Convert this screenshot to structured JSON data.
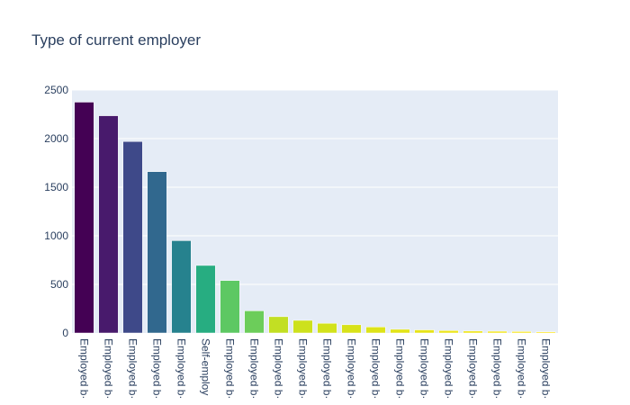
{
  "chart_data": {
    "type": "bar",
    "title": "Type of current employer",
    "xlabel": "",
    "ylabel": "",
    "ylim": [
      0,
      2500
    ],
    "yticks": [
      0,
      500,
      1000,
      1500,
      2000,
      2500
    ],
    "grid": true,
    "legend": "none",
    "categories": [
      "Employed b·",
      "Employed b·",
      "Employed b·",
      "Employed b·",
      "Employed b·",
      "Self-employ",
      "Employed b·",
      "Employed b·",
      "Employed b·",
      "Employed b·",
      "Employed b·",
      "Employed b·",
      "Employed b·",
      "Employed b·",
      "Employed b·",
      "Employed b·",
      "Employed b·",
      "Employed b·",
      "Employed b·",
      "Employed b·"
    ],
    "values": [
      2375,
      2235,
      1970,
      1660,
      950,
      695,
      540,
      228,
      168,
      130,
      100,
      85,
      62,
      38,
      32,
      25,
      20,
      18,
      15,
      12
    ],
    "colors": [
      "#440154",
      "#481a6c",
      "#3e4989",
      "#31688e",
      "#26828e",
      "#27ad81",
      "#5dc863",
      "#6ccd5a",
      "#c2df23",
      "#cde11d",
      "#d2e21b",
      "#d8e219",
      "#dde318",
      "#e2e418",
      "#e7e419",
      "#ece51b",
      "#efe51c",
      "#f2e51d",
      "#f6e620",
      "#fde725"
    ],
    "bar_color_alt": [
      "#2a788e",
      "#22a884",
      "#44bf70",
      "#7ad151",
      "#bddf26"
    ]
  },
  "style": {
    "plot_bg": "#e5ecf6",
    "grid_color": "#ffffff",
    "text_color": "#2a3f5f"
  }
}
